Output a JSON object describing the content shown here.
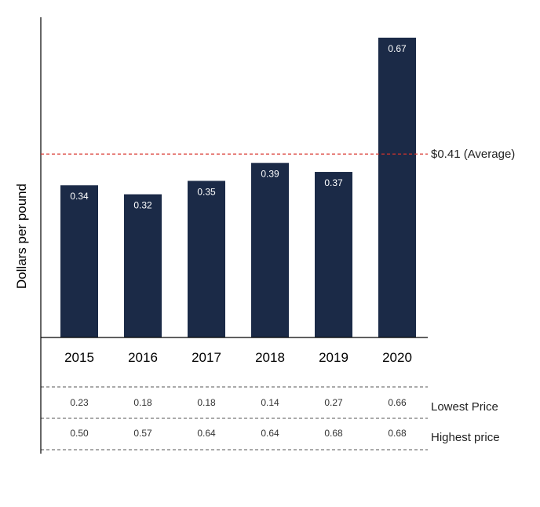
{
  "chart_data": {
    "type": "bar",
    "title": "",
    "xlabel": "",
    "ylabel": "Dollars per pound",
    "categories": [
      "2015",
      "2016",
      "2017",
      "2018",
      "2019",
      "2020"
    ],
    "values": [
      0.34,
      0.32,
      0.35,
      0.39,
      0.37,
      0.67
    ],
    "ylim": [
      0,
      0.7
    ],
    "grid": false,
    "average": {
      "value": 0.41,
      "label": "$0.41 (Average)"
    },
    "table_rows": [
      {
        "label": "Lowest Price",
        "values": [
          "0.23",
          "0.18",
          "0.18",
          "0.14",
          "0.27",
          "0.66"
        ]
      },
      {
        "label": "Highest price",
        "values": [
          "0.50",
          "0.57",
          "0.64",
          "0.64",
          "0.68",
          "0.68"
        ]
      }
    ]
  },
  "colors": {
    "bar": "#1b2a47",
    "average_line": "#d9342b",
    "axis": "#000000",
    "table_dash": "#555555"
  }
}
